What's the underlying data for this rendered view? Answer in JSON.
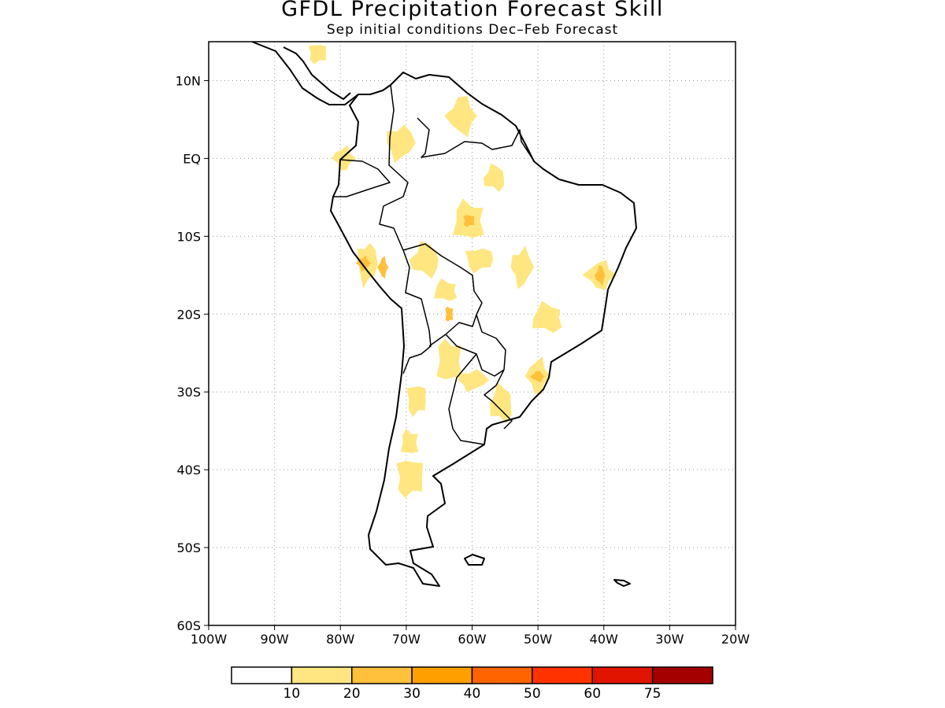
{
  "title": "GFDL Precipitation Forecast Skill",
  "subtitle": "Sep initial conditions   Dec–Feb Forecast",
  "map": {
    "lon_range": [
      -100,
      -20
    ],
    "lat_range": [
      -60,
      15
    ],
    "gridlines": "dotted",
    "x_ticks": [
      {
        "lon": -100,
        "label": "100W"
      },
      {
        "lon": -90,
        "label": "90W"
      },
      {
        "lon": -80,
        "label": "80W"
      },
      {
        "lon": -70,
        "label": "70W"
      },
      {
        "lon": -60,
        "label": "60W"
      },
      {
        "lon": -50,
        "label": "50W"
      },
      {
        "lon": -40,
        "label": "40W"
      },
      {
        "lon": -30,
        "label": "30W"
      },
      {
        "lon": -20,
        "label": "20W"
      }
    ],
    "y_ticks": [
      {
        "lat": 10,
        "label": "10N"
      },
      {
        "lat": 0,
        "label": "EQ"
      },
      {
        "lat": -10,
        "label": "10S"
      },
      {
        "lat": -20,
        "label": "20S"
      },
      {
        "lat": -30,
        "label": "30S"
      },
      {
        "lat": -40,
        "label": "40S"
      },
      {
        "lat": -50,
        "label": "50S"
      },
      {
        "lat": -60,
        "label": "60S"
      }
    ]
  },
  "colorbar": {
    "colors": [
      "#ffffff",
      "#ffe680",
      "#ffc03c",
      "#ffa000",
      "#ff6400",
      "#ff3200",
      "#e11400",
      "#a50000"
    ],
    "labels": [
      "10",
      "20",
      "30",
      "40",
      "50",
      "60",
      "75"
    ]
  },
  "skill_regions": [
    {
      "lon": -83.5,
      "lat": 13.5,
      "level": 1
    },
    {
      "lon": -71,
      "lat": 2,
      "level": 1
    },
    {
      "lon": -79.5,
      "lat": 0,
      "level": 1
    },
    {
      "lon": -61.5,
      "lat": 5.5,
      "level": 1
    },
    {
      "lon": -56.5,
      "lat": -2.5,
      "level": 1
    },
    {
      "lon": -60.5,
      "lat": -8,
      "level": 1
    },
    {
      "lon": -60.5,
      "lat": -8,
      "level": 2
    },
    {
      "lon": -76,
      "lat": -13.5,
      "level": 1
    },
    {
      "lon": -76.5,
      "lat": -13.5,
      "level": 2
    },
    {
      "lon": -73.5,
      "lat": -14,
      "level": 2
    },
    {
      "lon": -67,
      "lat": -13,
      "level": 1
    },
    {
      "lon": -64,
      "lat": -17,
      "level": 1
    },
    {
      "lon": -63.5,
      "lat": -20,
      "level": 2
    },
    {
      "lon": -59,
      "lat": -13,
      "level": 1
    },
    {
      "lon": -52.5,
      "lat": -14,
      "level": 1
    },
    {
      "lon": -40.5,
      "lat": -15,
      "level": 1
    },
    {
      "lon": -40.5,
      "lat": -15,
      "level": 2
    },
    {
      "lon": -48.5,
      "lat": -20.5,
      "level": 1
    },
    {
      "lon": -63.5,
      "lat": -26,
      "level": 1
    },
    {
      "lon": -68.5,
      "lat": -31,
      "level": 1
    },
    {
      "lon": -60,
      "lat": -28.5,
      "level": 1
    },
    {
      "lon": -50,
      "lat": -28,
      "level": 1
    },
    {
      "lon": -50,
      "lat": -28,
      "level": 2
    },
    {
      "lon": -55.5,
      "lat": -31.5,
      "level": 1
    },
    {
      "lon": -69.5,
      "lat": -36.5,
      "level": 1
    },
    {
      "lon": -69.5,
      "lat": -41,
      "level": 1
    }
  ]
}
